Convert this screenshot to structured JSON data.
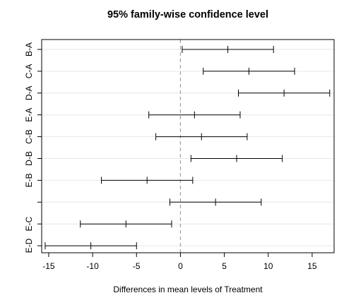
{
  "chart_data": {
    "type": "errorbar",
    "title": "95% family-wise confidence level",
    "xlabel": "Differences in mean levels of Treatment",
    "ylabel": "",
    "xlim": [
      -15.8,
      17.5
    ],
    "xticks": [
      -15,
      -10,
      -5,
      0,
      5,
      10,
      15
    ],
    "reference_line": 0,
    "grid": true,
    "comparisons": [
      {
        "label": "B-A",
        "lower": 0.2,
        "estimate": 5.4,
        "upper": 10.6
      },
      {
        "label": "C-A",
        "lower": 2.6,
        "estimate": 7.8,
        "upper": 13.0
      },
      {
        "label": "D-A",
        "lower": 6.6,
        "estimate": 11.8,
        "upper": 17.0
      },
      {
        "label": "E-A",
        "lower": -3.6,
        "estimate": 1.6,
        "upper": 6.8
      },
      {
        "label": "C-B",
        "lower": -2.8,
        "estimate": 2.4,
        "upper": 7.6
      },
      {
        "label": "D-B",
        "lower": 1.2,
        "estimate": 6.4,
        "upper": 11.6
      },
      {
        "label": "E-B",
        "lower": -9.0,
        "estimate": -3.8,
        "upper": 1.4
      },
      {
        "label": "",
        "lower": -1.2,
        "estimate": 4.0,
        "upper": 9.2
      },
      {
        "label": "E-C",
        "lower": -11.4,
        "estimate": -6.2,
        "upper": -1.0
      },
      {
        "label": "E-D",
        "lower": -15.4,
        "estimate": -10.2,
        "upper": -5.0
      }
    ]
  }
}
